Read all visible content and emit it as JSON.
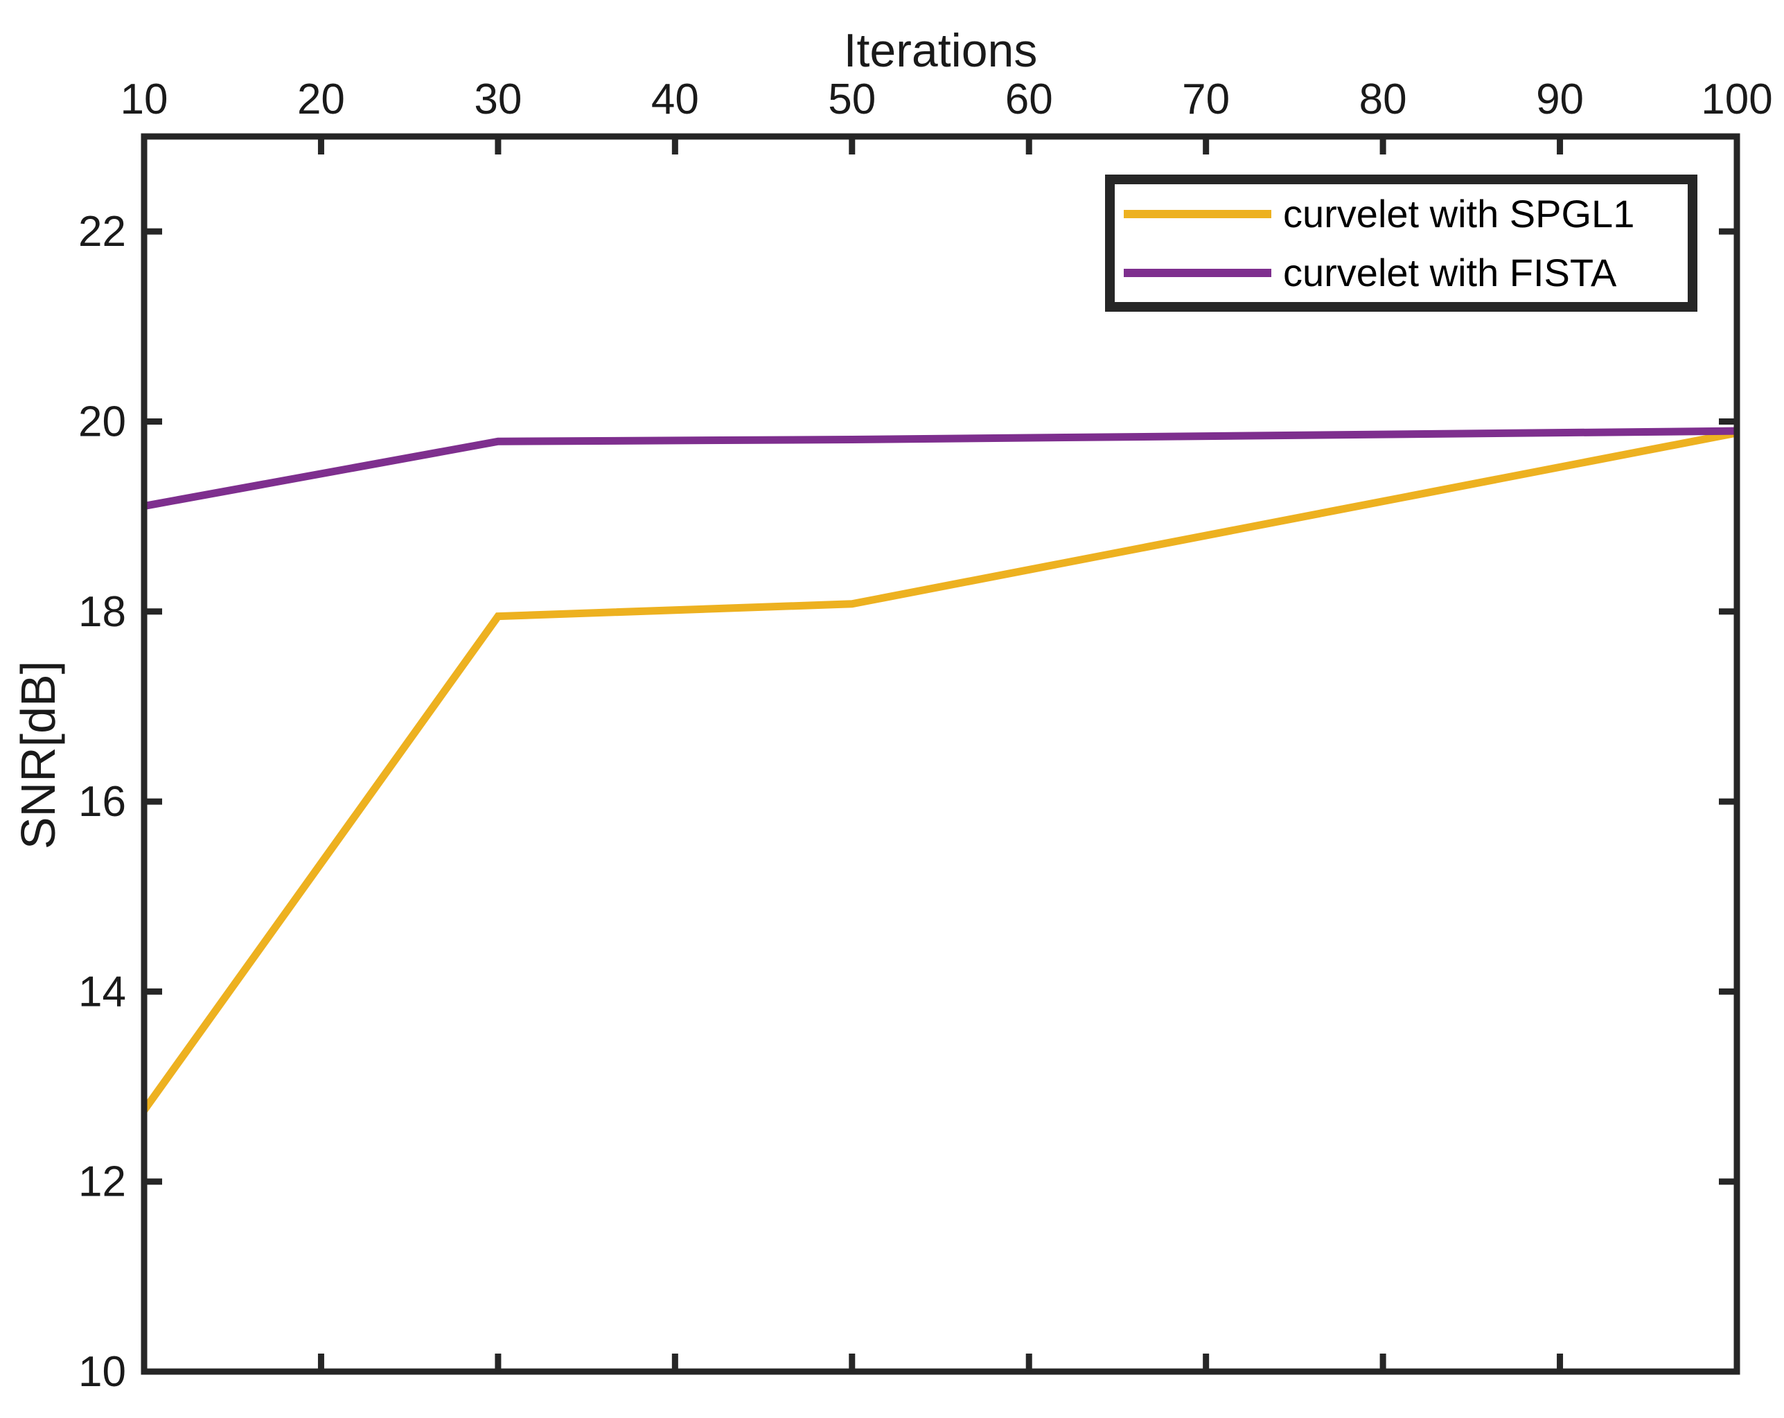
{
  "chart_data": {
    "type": "line",
    "title": "",
    "xlabel": "Iterations",
    "ylabel": "SNR[dB]",
    "xlabel_position": "top",
    "xlim": [
      10,
      100
    ],
    "ylim": [
      10,
      23
    ],
    "xticks": [
      10,
      20,
      30,
      40,
      50,
      60,
      70,
      80,
      90,
      100
    ],
    "yticks": [
      10,
      12,
      14,
      16,
      18,
      20,
      22
    ],
    "grid": false,
    "axis_color": "#262626",
    "legend_position": "top-right",
    "series": [
      {
        "name": "curvelet with SPGL1",
        "color": "#EDB120",
        "x": [
          10,
          30,
          50,
          100
        ],
        "y": [
          12.75,
          17.95,
          18.08,
          19.88
        ]
      },
      {
        "name": "curvelet with FISTA",
        "color": "#7E2F8E",
        "x": [
          10,
          30,
          50,
          100
        ],
        "y": [
          19.11,
          19.79,
          19.81,
          19.9
        ]
      }
    ]
  }
}
